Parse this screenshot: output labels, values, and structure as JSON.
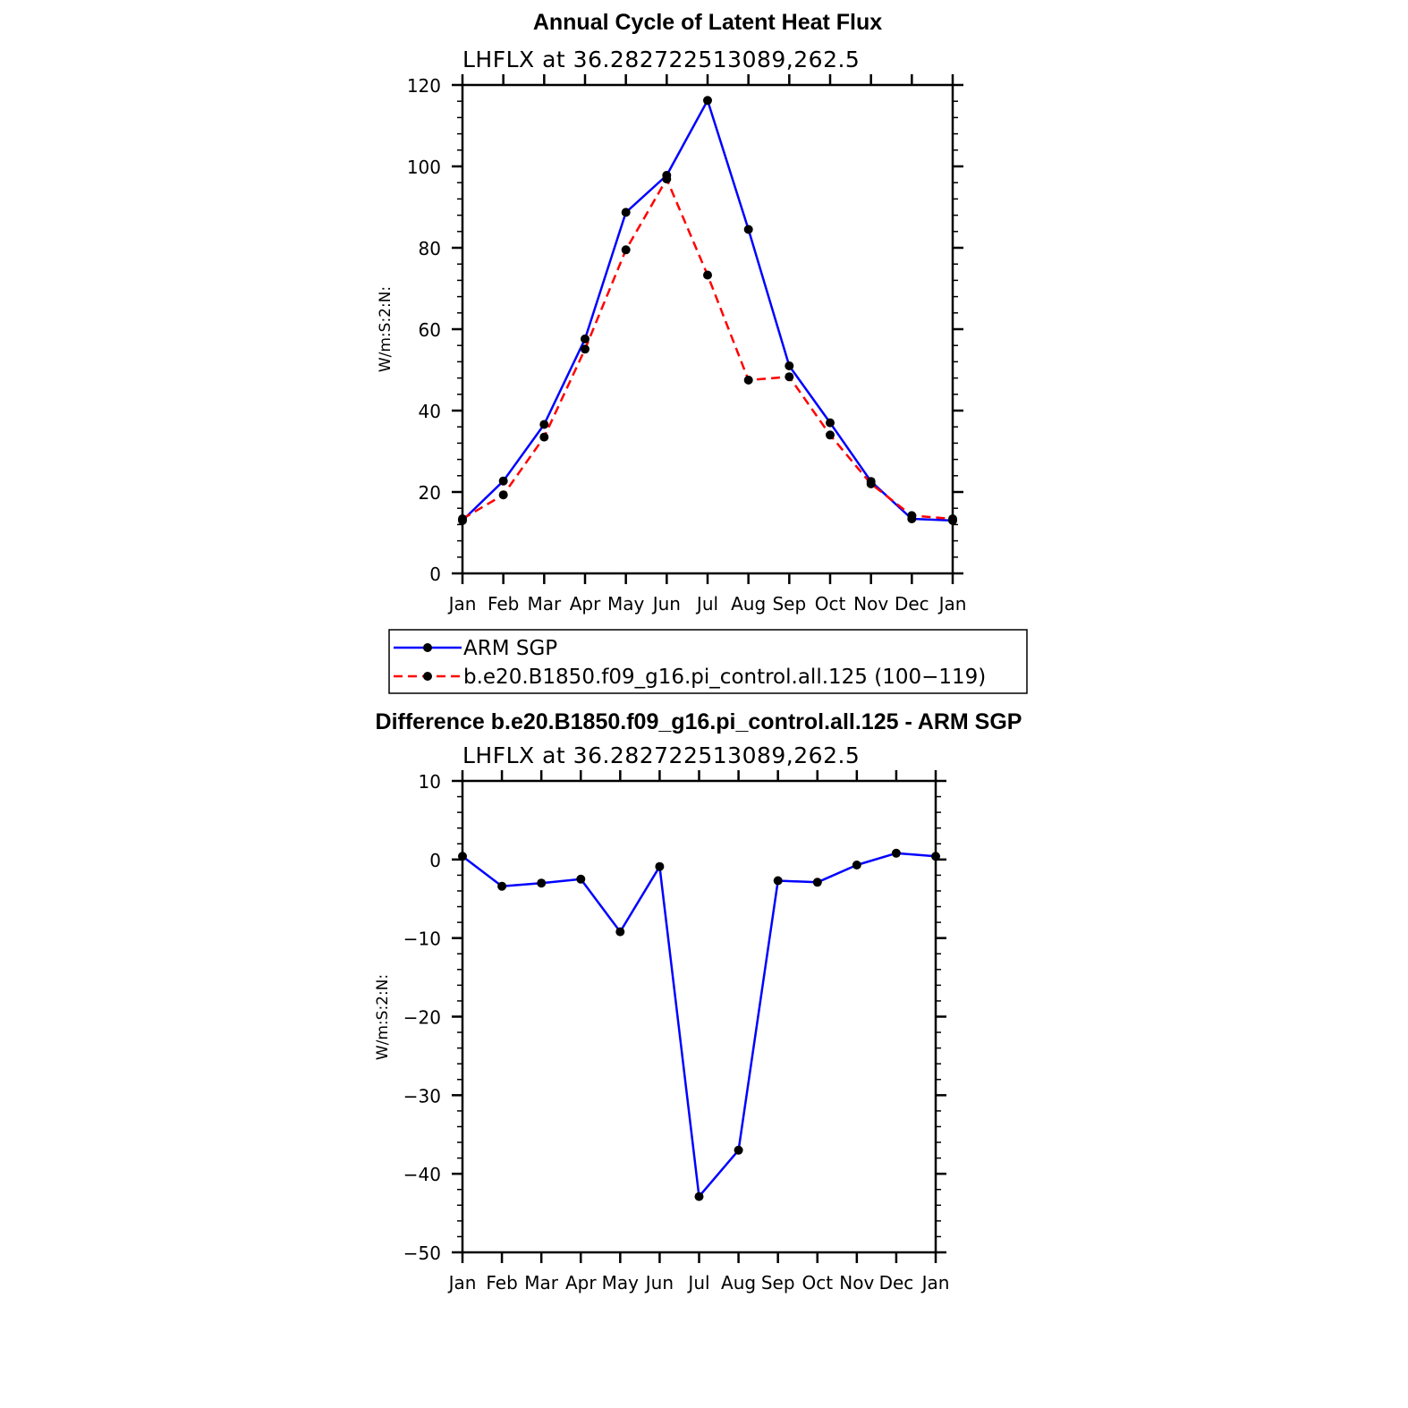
{
  "chart_data": [
    {
      "type": "line",
      "title": "Annual Cycle of Latent Heat Flux",
      "subtitle": "LHFLX at 36.282722513089,262.5",
      "xlabel": "",
      "ylabel": "W/m:S:2:N:",
      "categories": [
        "Jan",
        "Feb",
        "Mar",
        "Apr",
        "May",
        "Jun",
        "Jul",
        "Aug",
        "Sep",
        "Oct",
        "Nov",
        "Dec",
        "Jan"
      ],
      "ylim": [
        0,
        120
      ],
      "yticks": [
        0,
        20,
        40,
        60,
        80,
        100,
        120
      ],
      "grid": false,
      "legend_position": "bottom",
      "series": [
        {
          "name": "ARM SGP",
          "color": "#0000ff",
          "dash": "solid",
          "marker": "dot",
          "values": [
            13.0,
            22.7,
            36.6,
            57.6,
            88.7,
            97.8,
            116.2,
            84.5,
            51.0,
            37.0,
            22.6,
            13.4,
            13.0
          ]
        },
        {
          "name": "b.e20.B1850.f09_g16.pi_control.all.125 (100−119)",
          "color": "#ff0000",
          "dash": "dashed",
          "marker": "dot",
          "values": [
            13.4,
            19.3,
            33.5,
            55.1,
            79.5,
            96.9,
            73.3,
            47.5,
            48.3,
            34.0,
            22.0,
            14.2,
            13.4
          ]
        }
      ]
    },
    {
      "type": "line",
      "title": "Difference b.e20.B1850.f09_g16.pi_control.all.125 - ARM SGP",
      "subtitle": "LHFLX at 36.282722513089,262.5",
      "xlabel": "",
      "ylabel": "W/m:S:2:N:",
      "categories": [
        "Jan",
        "Feb",
        "Mar",
        "Apr",
        "May",
        "Jun",
        "Jul",
        "Aug",
        "Sep",
        "Oct",
        "Nov",
        "Dec",
        "Jan"
      ],
      "ylim": [
        -50,
        10
      ],
      "yticks": [
        -50,
        -40,
        -30,
        -20,
        -10,
        0,
        10
      ],
      "grid": false,
      "series": [
        {
          "color": "#0000ff",
          "dash": "solid",
          "marker": "dot",
          "values": [
            0.4,
            -3.4,
            -3.0,
            -2.5,
            -9.2,
            -0.9,
            -42.9,
            -37.0,
            -2.7,
            -2.9,
            -0.7,
            0.8,
            0.4
          ]
        }
      ]
    }
  ]
}
